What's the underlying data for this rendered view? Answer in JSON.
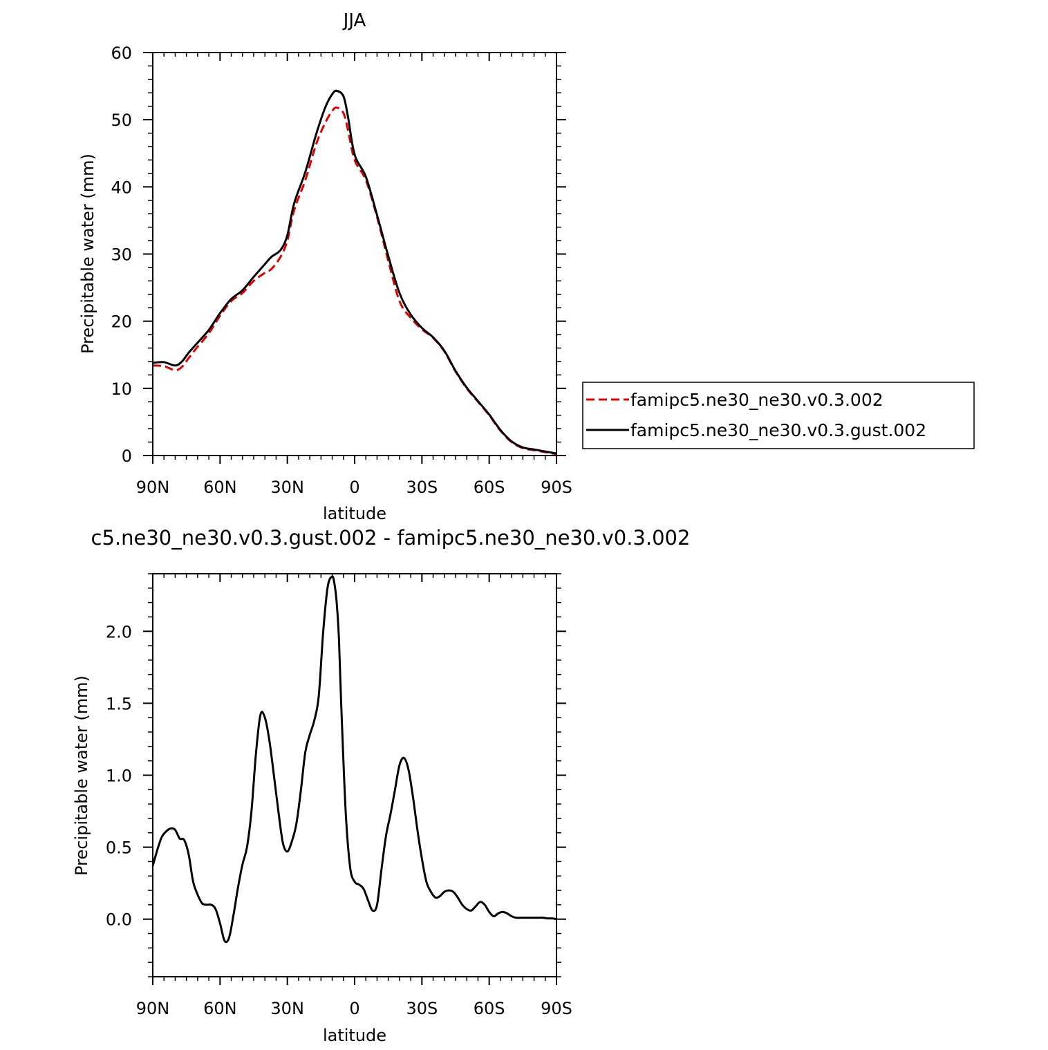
{
  "chart_data": [
    {
      "type": "line",
      "title": "JJA",
      "xlabel": "latitude",
      "ylabel": "Precipitable water (mm)",
      "xlim": [
        -90,
        90
      ],
      "ylim": [
        0,
        60
      ],
      "xticks": [
        -90,
        -60,
        -30,
        0,
        30,
        60,
        90
      ],
      "xtick_labels": [
        "90N",
        "60N",
        "30N",
        "0",
        "30S",
        "60S",
        "90S"
      ],
      "yticks": [
        0,
        10,
        20,
        30,
        40,
        50,
        60
      ],
      "ytick_labels": [
        "0",
        "10",
        "20",
        "30",
        "40",
        "50",
        "60"
      ],
      "legend_position": "right",
      "series": [
        {
          "name": "famipc5.ne30_ne30.v0.3.002",
          "color": "#e00000",
          "dash": "dashed",
          "x": [
            -90,
            -85,
            -80,
            -77,
            -74,
            -70,
            -65,
            -60,
            -55,
            -50,
            -45,
            -40,
            -37,
            -33,
            -30,
            -27,
            -22,
            -17,
            -13,
            -10,
            -8,
            -5,
            -3,
            0,
            5,
            10,
            15,
            20,
            25,
            30,
            35,
            40,
            45,
            50,
            55,
            60,
            65,
            70,
            75,
            80,
            85,
            90
          ],
          "y": [
            13.4,
            13.3,
            12.7,
            13.2,
            14.5,
            16.2,
            18.2,
            20.8,
            23.0,
            24.2,
            26.0,
            27.2,
            27.8,
            29.6,
            32.0,
            36.5,
            41.0,
            46.5,
            49.6,
            51.3,
            51.8,
            51.0,
            48.5,
            44.0,
            41.0,
            35.5,
            29.0,
            23.0,
            20.5,
            18.8,
            17.5,
            15.5,
            12.5,
            10.0,
            8.0,
            6.0,
            3.7,
            2.0,
            1.1,
            0.8,
            0.5,
            0.2
          ]
        },
        {
          "name": "famipc5.ne30_ne30.v0.3.gust.002",
          "color": "#000000",
          "dash": "solid",
          "x": [
            -90,
            -85,
            -80,
            -77,
            -74,
            -70,
            -65,
            -60,
            -55,
            -50,
            -45,
            -40,
            -37,
            -33,
            -30,
            -27,
            -22,
            -17,
            -13,
            -10,
            -8,
            -5,
            -3,
            0,
            5,
            10,
            15,
            20,
            25,
            30,
            35,
            40,
            45,
            50,
            55,
            60,
            65,
            70,
            75,
            80,
            85,
            90
          ],
          "y": [
            13.8,
            13.9,
            13.4,
            14.0,
            15.3,
            16.8,
            18.7,
            21.2,
            23.3,
            24.6,
            26.6,
            28.5,
            29.6,
            30.6,
            32.8,
            37.5,
            42.2,
            48.0,
            51.9,
            53.8,
            54.3,
            53.5,
            50.5,
            44.8,
            41.5,
            35.8,
            29.7,
            24.2,
            21.0,
            19.0,
            17.6,
            15.6,
            12.6,
            10.1,
            8.1,
            6.1,
            3.8,
            2.1,
            1.2,
            0.9,
            0.6,
            0.3
          ]
        }
      ]
    },
    {
      "type": "line",
      "title": "c5.ne30_ne30.v0.3.gust.002 - famipc5.ne30_ne30.v0.3.002",
      "xlabel": "latitude",
      "ylabel": "Precipitable water (mm)",
      "xlim": [
        -90,
        90
      ],
      "ylim": [
        -0.4,
        2.4
      ],
      "xticks": [
        -90,
        -60,
        -30,
        0,
        30,
        60,
        90
      ],
      "xtick_labels": [
        "90N",
        "60N",
        "30N",
        "0",
        "30S",
        "60S",
        "90S"
      ],
      "yticks": [
        0.0,
        0.5,
        1.0,
        1.5,
        2.0
      ],
      "ytick_labels": [
        "0.0",
        "0.5",
        "1.0",
        "1.5",
        "2.0"
      ],
      "series": [
        {
          "color": "#000000",
          "dash": "solid",
          "x": [
            -90,
            -88,
            -86,
            -84,
            -82,
            -80,
            -78,
            -76,
            -74,
            -72,
            -70,
            -68,
            -66,
            -64,
            -62,
            -60,
            -58,
            -56,
            -54,
            -52,
            -50,
            -48,
            -46,
            -44,
            -42,
            -40,
            -38,
            -36,
            -34,
            -32,
            -30,
            -28,
            -26,
            -24,
            -22,
            -20,
            -18,
            -16,
            -14,
            -12,
            -10,
            -9,
            -8,
            -7,
            -6,
            -4,
            -2,
            0,
            2,
            4,
            6,
            8,
            10,
            12,
            14,
            16,
            18,
            20,
            22,
            24,
            26,
            28,
            30,
            32,
            34,
            36,
            38,
            40,
            42,
            44,
            46,
            48,
            50,
            52,
            54,
            56,
            58,
            60,
            62,
            64,
            66,
            68,
            70,
            72,
            74,
            76,
            78,
            80,
            82,
            84,
            86,
            88,
            90
          ],
          "y": [
            0.37,
            0.48,
            0.57,
            0.61,
            0.63,
            0.62,
            0.56,
            0.55,
            0.45,
            0.26,
            0.17,
            0.11,
            0.1,
            0.1,
            0.07,
            -0.03,
            -0.15,
            -0.13,
            0.03,
            0.22,
            0.38,
            0.5,
            0.75,
            1.15,
            1.42,
            1.4,
            1.24,
            1.0,
            0.75,
            0.53,
            0.47,
            0.54,
            0.66,
            0.89,
            1.16,
            1.28,
            1.38,
            1.55,
            2.0,
            2.31,
            2.38,
            2.33,
            2.2,
            1.95,
            1.5,
            0.75,
            0.36,
            0.26,
            0.24,
            0.21,
            0.13,
            0.06,
            0.1,
            0.35,
            0.58,
            0.73,
            0.9,
            1.07,
            1.12,
            1.04,
            0.85,
            0.62,
            0.42,
            0.26,
            0.19,
            0.15,
            0.16,
            0.19,
            0.2,
            0.19,
            0.15,
            0.1,
            0.07,
            0.06,
            0.09,
            0.12,
            0.1,
            0.05,
            0.02,
            0.04,
            0.05,
            0.04,
            0.02,
            0.01,
            0.01,
            0.01,
            0.01,
            0.01,
            0.01,
            0.01,
            0.005,
            0.005,
            0.0
          ]
        }
      ]
    }
  ]
}
